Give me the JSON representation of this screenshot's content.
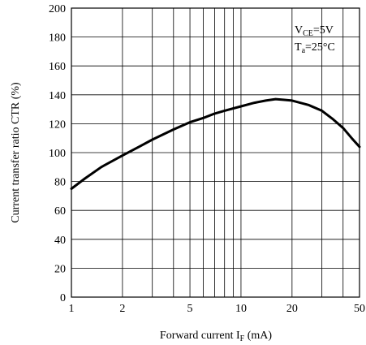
{
  "chart_data": {
    "type": "line",
    "xscale": "log",
    "xlim": [
      1,
      50
    ],
    "ylim": [
      0,
      200
    ],
    "grid": true,
    "x_ticks": [
      1,
      2,
      5,
      10,
      20,
      50
    ],
    "x_tick_labels": [
      "1",
      "2",
      "5",
      "10",
      "20",
      "50"
    ],
    "x_gridlines": [
      1,
      2,
      3,
      4,
      5,
      6,
      7,
      8,
      9,
      10,
      20,
      30,
      40,
      50
    ],
    "y_ticks": [
      0,
      20,
      40,
      60,
      80,
      100,
      120,
      140,
      160,
      180,
      200
    ],
    "y_tick_labels": [
      "0",
      "20",
      "40",
      "60",
      "80",
      "100",
      "120",
      "140",
      "160",
      "180",
      "200"
    ],
    "xlabel": {
      "main": "Forward current I",
      "sub": "F",
      "unit": " (mA)"
    },
    "ylabel": "Current transfer ratio CTR (%)",
    "annotations": {
      "line1": {
        "main": "V",
        "sub": "CE",
        "rest": "=5V"
      },
      "line2": {
        "main": "T",
        "sub": "a",
        "rest": "=25°C"
      }
    },
    "series": [
      {
        "x": [
          1,
          1.2,
          1.5,
          2,
          2.5,
          3,
          4,
          5,
          6,
          7,
          8,
          10,
          12,
          14,
          16,
          18,
          20,
          25,
          30,
          35,
          40,
          45,
          50
        ],
        "y": [
          75,
          82,
          90,
          98,
          104,
          109,
          116,
          121,
          124,
          127,
          129,
          132,
          134.5,
          136,
          137,
          136.5,
          136,
          133,
          129,
          123,
          117,
          110,
          104
        ]
      }
    ]
  }
}
